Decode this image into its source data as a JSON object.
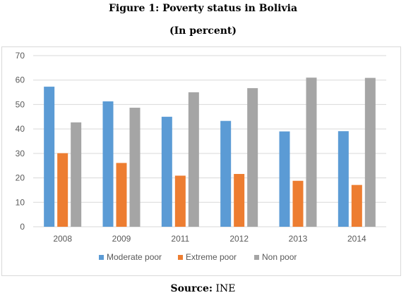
{
  "header": {
    "title": "Figure 1: Poverty status in Bolivia",
    "subtitle": "(In percent)"
  },
  "footer": {
    "source_label": "Source:",
    "source_value": "INE"
  },
  "chart_data": {
    "type": "bar",
    "title": "",
    "xlabel": "",
    "ylabel": "",
    "categories": [
      "2008",
      "2009",
      "2011",
      "2012",
      "2013",
      "2014"
    ],
    "series": [
      {
        "name": "Moderate poor",
        "color": "#5b9bd5",
        "values": [
          57.3,
          51.3,
          45.0,
          43.3,
          39.0,
          39.1
        ]
      },
      {
        "name": "Extreme poor",
        "color": "#ed7d31",
        "values": [
          30.1,
          26.1,
          20.9,
          21.6,
          18.8,
          17.1
        ]
      },
      {
        "name": "Non poor",
        "color": "#a5a5a5",
        "values": [
          42.7,
          48.7,
          55.0,
          56.7,
          61.0,
          60.9
        ]
      }
    ],
    "ylim": [
      0,
      70
    ],
    "yticks": [
      0,
      10,
      20,
      30,
      40,
      50,
      60,
      70
    ],
    "grid": true,
    "legend": "bottom"
  }
}
